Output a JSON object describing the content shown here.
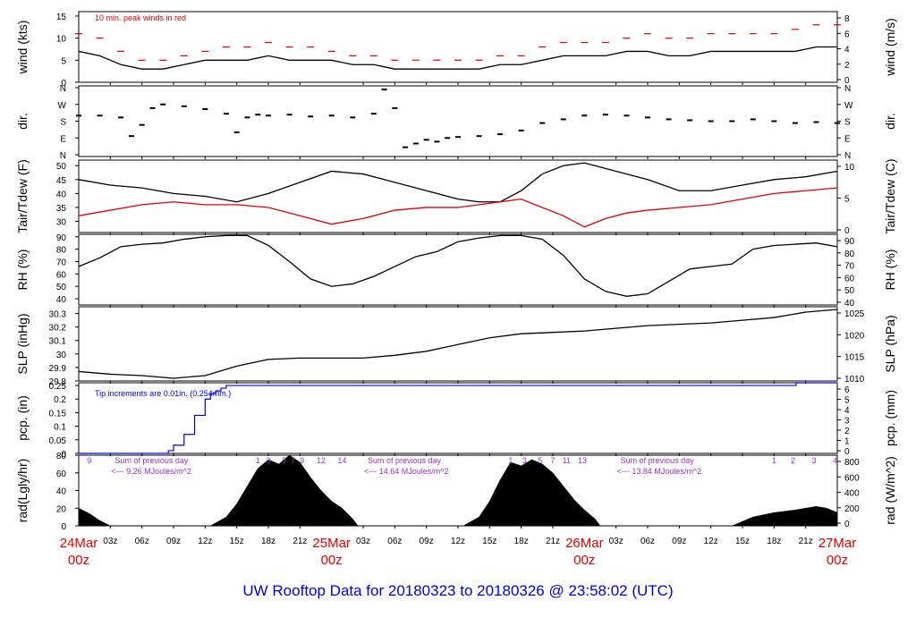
{
  "title": "UW Rooftop Data for 20180323  to  20180326 @ 23:58:02  (UTC)",
  "colors": {
    "wind_peak": "#e00000",
    "tdew": "#e00000",
    "pcp": "#0000dd",
    "annot_rad": "#9b30c8",
    "date": "#e00000",
    "title": "#0000dd"
  },
  "time_axis": {
    "tick_labels": [
      "03z",
      "06z",
      "09z",
      "12z",
      "15z",
      "18z",
      "21z",
      "03z",
      "06z",
      "09z",
      "12z",
      "15z",
      "18z",
      "21z",
      "03z",
      "06z",
      "09z",
      "12z",
      "15z",
      "18z",
      "21z"
    ],
    "tick_hours": [
      3,
      6,
      9,
      12,
      15,
      18,
      21,
      27,
      30,
      33,
      36,
      39,
      42,
      45,
      51,
      54,
      57,
      60,
      63,
      66,
      69
    ],
    "date_labels": [
      {
        "hour": 0,
        "date": "24Mar",
        "time": "00z"
      },
      {
        "hour": 24,
        "date": "25Mar",
        "time": "00z"
      },
      {
        "hour": 48,
        "date": "26Mar",
        "time": "00z"
      },
      {
        "hour": 72,
        "date": "27Mar",
        "time": "00z"
      }
    ]
  },
  "chart_data": [
    {
      "type": "line",
      "id": "wind",
      "ylabel": "wind (kts)",
      "y2label": "wind (m/s)",
      "ylim": [
        0,
        16
      ],
      "yticks": [
        0,
        5,
        10,
        15
      ],
      "y2ticks": [
        "0",
        "2",
        "4",
        "6",
        "8"
      ],
      "annotation": "10 min. peak winds in red",
      "series": [
        {
          "name": "wind",
          "x": [
            0,
            2,
            4,
            6,
            8,
            10,
            12,
            14,
            16,
            18,
            20,
            22,
            24,
            26,
            28,
            30,
            32,
            34,
            36,
            38,
            40,
            42,
            44,
            46,
            48,
            50,
            52,
            54,
            56,
            58,
            60,
            62,
            64,
            66,
            68,
            70,
            72
          ],
          "values": [
            7,
            6,
            4,
            3,
            3,
            4,
            5,
            5,
            5,
            6,
            5,
            5,
            5,
            4,
            4,
            3,
            3,
            3,
            3,
            3,
            4,
            4,
            5,
            6,
            6,
            6,
            7,
            7,
            6,
            6,
            7,
            7,
            7,
            7,
            7,
            8,
            8
          ]
        },
        {
          "name": "10 min. peak winds",
          "x": [
            0,
            2,
            4,
            6,
            8,
            10,
            12,
            14,
            16,
            18,
            20,
            22,
            24,
            26,
            28,
            30,
            32,
            34,
            36,
            38,
            40,
            42,
            44,
            46,
            48,
            50,
            52,
            54,
            56,
            58,
            60,
            62,
            64,
            66,
            68,
            70,
            72
          ],
          "values": [
            11,
            10,
            7,
            5,
            5,
            6,
            7,
            8,
            8,
            9,
            8,
            8,
            7,
            6,
            6,
            5,
            5,
            5,
            5,
            5,
            6,
            6,
            8,
            9,
            9,
            9,
            10,
            11,
            10,
            10,
            11,
            11,
            11,
            11,
            12,
            13,
            13
          ]
        }
      ]
    },
    {
      "type": "scatter",
      "id": "dir",
      "ylabel": "dir.",
      "y2label": "dir.",
      "ytick_labels": [
        "N",
        "W",
        "S",
        "E",
        "N"
      ],
      "ytick_degrees": [
        360,
        270,
        180,
        90,
        0
      ],
      "series": [
        {
          "name": "direction",
          "x": [
            0,
            2,
            4,
            5,
            6,
            7,
            8,
            10,
            12,
            14,
            15,
            16,
            17,
            18,
            20,
            22,
            24,
            26,
            28,
            29,
            30,
            31,
            32,
            33,
            34,
            35,
            36,
            38,
            40,
            42,
            44,
            46,
            48,
            50,
            52,
            54,
            56,
            58,
            60,
            62,
            64,
            66,
            68,
            70,
            72
          ],
          "values": [
            210,
            210,
            200,
            100,
            160,
            250,
            270,
            260,
            245,
            220,
            120,
            200,
            215,
            210,
            215,
            205,
            210,
            200,
            220,
            350,
            250,
            40,
            60,
            80,
            70,
            90,
            95,
            100,
            110,
            130,
            170,
            190,
            210,
            215,
            210,
            200,
            190,
            185,
            180,
            180,
            190,
            180,
            170,
            175,
            170
          ]
        }
      ]
    },
    {
      "type": "line",
      "id": "temp",
      "ylabel": "Tair/Tdew (F)",
      "y2label": "Tair/Tdew (C)",
      "ylim": [
        26,
        52
      ],
      "yticks": [
        30,
        35,
        40,
        45,
        50
      ],
      "y2ticks": [
        "0",
        "5",
        "10"
      ],
      "series": [
        {
          "name": "Tair",
          "x": [
            0,
            3,
            6,
            9,
            12,
            15,
            18,
            21,
            24,
            27,
            30,
            33,
            36,
            38,
            40,
            42,
            44,
            46,
            48,
            50,
            52,
            54,
            57,
            60,
            63,
            66,
            69,
            72
          ],
          "values": [
            45,
            43,
            42,
            40,
            39,
            37,
            40,
            44,
            48,
            47,
            44,
            41,
            38,
            37,
            37,
            41,
            47,
            50,
            51,
            49,
            47,
            45,
            41,
            41,
            43,
            45,
            46,
            48
          ]
        },
        {
          "name": "Tdew",
          "x": [
            0,
            3,
            6,
            9,
            12,
            15,
            18,
            21,
            24,
            27,
            30,
            33,
            36,
            38,
            40,
            42,
            44,
            46,
            48,
            50,
            52,
            54,
            57,
            60,
            63,
            66,
            69,
            72
          ],
          "values": [
            32,
            34,
            36,
            37,
            36,
            36,
            35,
            32,
            29,
            31,
            34,
            35,
            35,
            36,
            37,
            38,
            35,
            32,
            28,
            31,
            33,
            34,
            35,
            36,
            38,
            40,
            41,
            42
          ]
        }
      ]
    },
    {
      "type": "line",
      "id": "rh",
      "ylabel": "RH (%)",
      "y2label": "RH (%)",
      "ylim": [
        35,
        92
      ],
      "yticks": [
        40,
        50,
        60,
        70,
        80,
        90
      ],
      "y2ticks": [
        "40",
        "50",
        "60",
        "70",
        "80",
        "90"
      ],
      "series": [
        {
          "name": "RH",
          "x": [
            0,
            2,
            4,
            6,
            8,
            10,
            12,
            14,
            16,
            18,
            20,
            22,
            24,
            26,
            28,
            30,
            32,
            34,
            36,
            38,
            40,
            42,
            44,
            46,
            48,
            50,
            52,
            54,
            56,
            58,
            60,
            62,
            64,
            66,
            68,
            70,
            72
          ],
          "values": [
            66,
            73,
            82,
            84,
            85,
            88,
            90,
            91,
            91,
            83,
            70,
            56,
            50,
            52,
            58,
            66,
            74,
            78,
            86,
            89,
            91,
            91,
            88,
            75,
            56,
            46,
            42,
            44,
            54,
            64,
            66,
            68,
            80,
            83,
            84,
            85,
            82
          ]
        }
      ]
    },
    {
      "type": "line",
      "id": "slp",
      "ylabel": "SLP (inHg)",
      "y2label": "SLP (hPa)",
      "ylim": [
        29.8,
        30.35
      ],
      "yticks": [
        29.8,
        29.9,
        30.0,
        30.1,
        30.2,
        30.3
      ],
      "y2ticks": [
        "1010",
        "1015",
        "1020",
        "1025"
      ],
      "series": [
        {
          "name": "SLP",
          "x": [
            0,
            3,
            6,
            9,
            12,
            15,
            18,
            21,
            24,
            27,
            30,
            33,
            36,
            39,
            42,
            45,
            48,
            51,
            54,
            57,
            60,
            63,
            66,
            69,
            72
          ],
          "values": [
            29.87,
            29.85,
            29.84,
            29.82,
            29.84,
            29.91,
            29.96,
            29.97,
            29.97,
            29.97,
            29.99,
            30.02,
            30.07,
            30.12,
            30.15,
            30.16,
            30.17,
            30.19,
            30.21,
            30.22,
            30.23,
            30.25,
            30.27,
            30.31,
            30.33
          ]
        }
      ]
    },
    {
      "type": "line",
      "id": "pcp",
      "ylabel": "pcp. (in)",
      "y2label": "pcp. (mm)",
      "ylim": [
        0,
        0.26
      ],
      "yticks": [
        0.0,
        0.05,
        0.1,
        0.15,
        0.2,
        0.25
      ],
      "y2ticks": [
        "0",
        "1",
        "2",
        "3",
        "4",
        "5",
        "6"
      ],
      "annotation": "Tip increments are 0.01in. (0.254mm.)",
      "series": [
        {
          "name": "pcp",
          "x": [
            0,
            8,
            8.5,
            9,
            10,
            11,
            12,
            12.5,
            13,
            13.5,
            14,
            68,
            68.1,
            72
          ],
          "values": [
            0,
            0,
            0.01,
            0.03,
            0.07,
            0.14,
            0.2,
            0.22,
            0.23,
            0.24,
            0.25,
            0.25,
            0.26,
            0.26
          ]
        }
      ]
    },
    {
      "type": "area",
      "id": "rad",
      "ylabel": "rad(Lgly/hr)",
      "y2label": "rad (W/m^2)",
      "ylim": [
        0,
        80
      ],
      "yticks": [
        0,
        20,
        40,
        60,
        80
      ],
      "y2ticks": [
        "0",
        "200",
        "400",
        "600",
        "800"
      ],
      "series": [
        {
          "name": "radiation",
          "x": [
            0,
            1,
            2,
            3,
            12.5,
            14,
            15,
            16,
            17,
            18,
            19,
            20,
            21,
            22,
            23,
            24,
            25,
            26,
            26.5,
            36.5,
            38,
            39,
            40,
            41,
            42,
            43,
            44,
            45,
            46,
            47,
            48,
            49,
            49.5,
            50.5,
            62,
            63,
            64,
            66,
            68,
            70,
            71,
            72
          ],
          "values": [
            20,
            14,
            6,
            0,
            0,
            10,
            25,
            45,
            65,
            75,
            70,
            80,
            72,
            55,
            40,
            28,
            20,
            8,
            0,
            0,
            10,
            28,
            52,
            72,
            68,
            75,
            70,
            60,
            45,
            30,
            18,
            8,
            0,
            0,
            0,
            5,
            10,
            15,
            18,
            22,
            20,
            15
          ]
        }
      ],
      "annotations": [
        {
          "hour": 1,
          "text": "9"
        },
        {
          "hour": 17,
          "text": "1"
        },
        {
          "hour": 18,
          "text": "3"
        },
        {
          "hour": 19.5,
          "text": "5"
        },
        {
          "hour": 20.3,
          "text": "7"
        },
        {
          "hour": 21.2,
          "text": "9"
        },
        {
          "hour": 23,
          "text": "12"
        },
        {
          "hour": 25,
          "text": "14"
        },
        {
          "hour": 41,
          "text": "1"
        },
        {
          "hour": 42.3,
          "text": "3"
        },
        {
          "hour": 43.8,
          "text": "5"
        },
        {
          "hour": 45,
          "text": "7"
        },
        {
          "hour": 46.3,
          "text": "11"
        },
        {
          "hour": 47.8,
          "text": "13"
        },
        {
          "hour": 66,
          "text": "1"
        },
        {
          "hour": 67.8,
          "text": "2"
        },
        {
          "hour": 69.8,
          "text": "3"
        },
        {
          "hour": 71.8,
          "text": "4"
        }
      ],
      "daily_sums": [
        {
          "hour": 3,
          "line1": "Sum of previous day",
          "line2": "<--- 9.26 MJoules/m^2"
        },
        {
          "hour": 27,
          "line1": "Sum of previous day",
          "line2": "<--- 14.64 MJoules/m^2"
        },
        {
          "hour": 51,
          "line1": "Sum of previous day",
          "line2": "<--- 13.84 MJoules/m^2"
        }
      ]
    }
  ]
}
